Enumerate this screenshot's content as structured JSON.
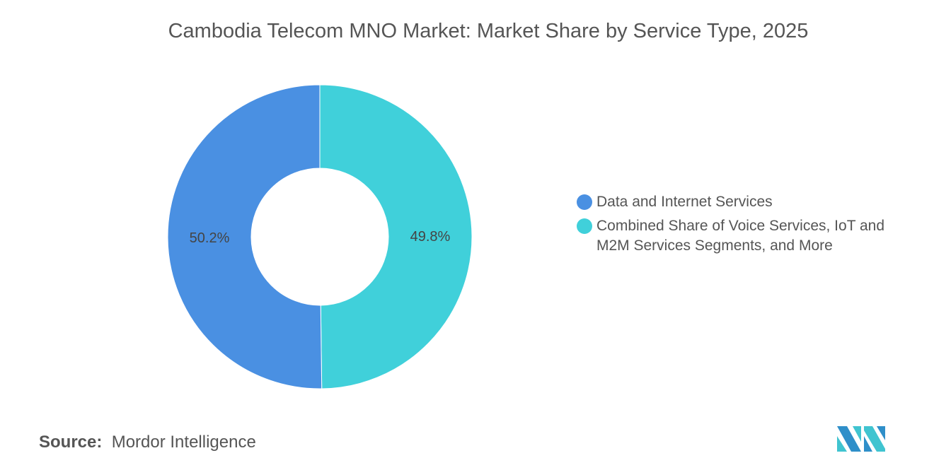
{
  "chart_data": {
    "type": "pie",
    "donut": true,
    "title": "Cambodia Telecom MNO Market: Market Share by Service Type, 2025",
    "slices": [
      {
        "name": "Data and Internet Services",
        "value": 50.2,
        "label": "50.2%",
        "color": "#4A90E2"
      },
      {
        "name": "Combined Share of Voice Services, IoT and M2M Services Segments, and More",
        "value": 49.8,
        "label": "49.8%",
        "color": "#40D0DA"
      }
    ],
    "legend_position": "right"
  },
  "source": {
    "label": "Source:",
    "value": "Mordor Intelligence"
  }
}
